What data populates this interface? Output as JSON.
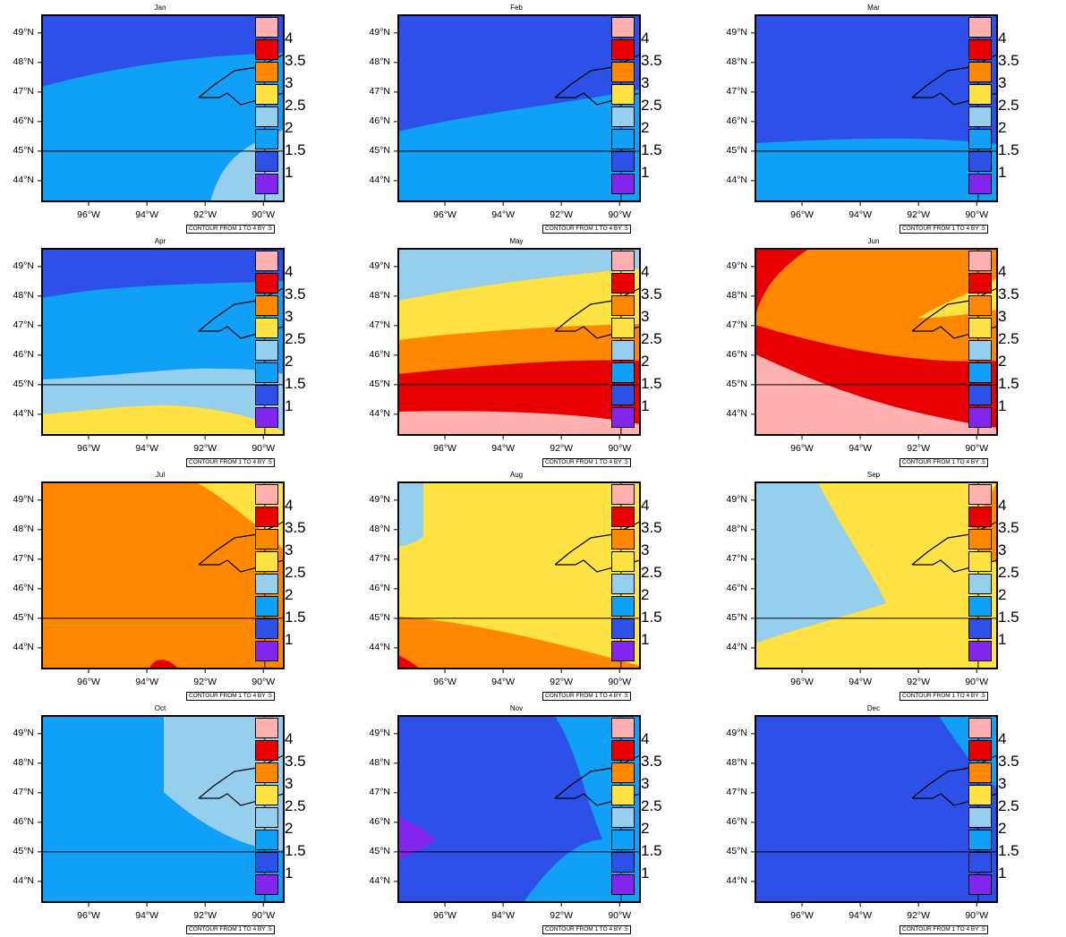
{
  "figure": {
    "axes": {
      "lat_labels": [
        "49°N",
        "48°N",
        "47°N",
        "46°N",
        "45°N",
        "44°N"
      ],
      "lon_labels": [
        "96°W",
        "94°W",
        "92°W",
        "90°W"
      ],
      "lat_range": [
        43.3,
        49.6
      ],
      "lon_range": [
        -97.6,
        -89.3
      ]
    },
    "contour_note": "CONTOUR FROM 1 TO 4 BY .5",
    "legend": {
      "labels": [
        "4",
        "3.5",
        "3",
        "2.5",
        "2",
        "1.5",
        "1"
      ],
      "colors": [
        "#ffb0b0",
        "#e80000",
        "#ff8800",
        "#ffe244",
        "#96cfee",
        "#10a0f8",
        "#2d50e8",
        "#8226ee"
      ],
      "color_levels": [
        "> 4",
        "3.5–4",
        "3–3.5",
        "2.5–3",
        "2–2.5",
        "1.5–2",
        "1–1.5",
        "< 1"
      ]
    },
    "panels": [
      {
        "title": "Jan",
        "background": "1.5–2",
        "features": [
          "1–1.5 north of ~47–48°N",
          "2–2.5 in southeast corner"
        ]
      },
      {
        "title": "Feb",
        "background": "1–1.5",
        "features": [
          "1.5–2 south of ~45.7–47°N"
        ]
      },
      {
        "title": "Mar",
        "background": "1–1.5",
        "features": [
          "1.5–2 south of ~45.3°N"
        ]
      },
      {
        "title": "Apr",
        "background": "1.5–2",
        "features": [
          "1–1.5 north of ~47.9°N",
          "2–2.5 band ~44–45.3°N",
          "2.5–3 south of ~44°N"
        ]
      },
      {
        "title": "May",
        "background": "2.5–3",
        "features": [
          "2–2.5 north of ~48.2°N",
          "3–3.5 band ~45.6–46.9°N",
          "3.5–4 band ~44–45.6°N",
          "> 4 south of ~44°N"
        ]
      },
      {
        "title": "Jun",
        "background": "3–3.5",
        "features": [
          "3.5–4 north-west corner",
          "2.5–3 wedge near 90°W 47.5°N",
          "3.5–4 diagonal band",
          "> 4 south-west"
        ]
      },
      {
        "title": "Jul",
        "background": "3–3.5",
        "features": [
          "2.5–3 north-east corner",
          "3.5–4 spot near 93.5°W 43.4°N"
        ]
      },
      {
        "title": "Aug",
        "background": "2.5–3",
        "features": [
          "2–2.5 strip at west edge north of 47.5°N",
          "3–3.5 south-west",
          "3.5–4 corner south-west"
        ]
      },
      {
        "title": "Sep",
        "background": "2.5–3",
        "features": [
          "2–2.5 west region",
          "3–3.5 north-east edge"
        ]
      },
      {
        "title": "Oct",
        "background": "1.5–2",
        "features": [
          "2–2.5 north-east region"
        ]
      },
      {
        "title": "Nov",
        "background": "1–1.5",
        "features": [
          "1.5–2 east region",
          "< 1 wedge at west edge near 45°N"
        ]
      },
      {
        "title": "Dec",
        "background": "1–1.5",
        "features": [
          "1.5–2 strip at north-east edge"
        ]
      }
    ]
  }
}
